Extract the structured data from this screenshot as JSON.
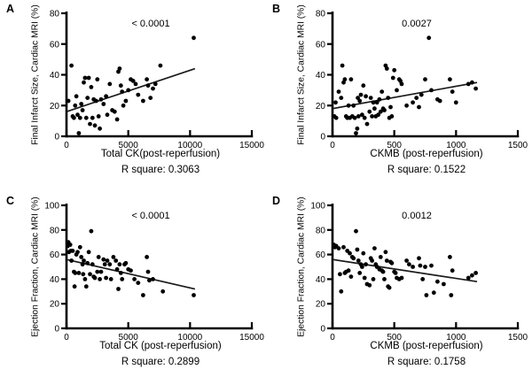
{
  "style": {
    "background": "#ffffff",
    "axis_color": "#000000",
    "point_color": "#000000",
    "line_color": "#1a1a1a",
    "text_color": "#000000"
  },
  "chart_data": [
    {
      "panel": "A",
      "type": "scatter",
      "xlabel": "Total CK(post-reperfusion)",
      "ylabel": "Final Infarct Size, Cardiac MRI (%)",
      "annotation": "< 0.0001",
      "footer": "R square: 0.3063",
      "xlim": [
        0,
        15000
      ],
      "ylim": [
        0,
        80
      ],
      "xticks": [
        0,
        5000,
        10000,
        15000
      ],
      "yticks": [
        0,
        20,
        40,
        60,
        80
      ],
      "legend": "none",
      "grid": false,
      "points": [
        [
          150,
          23
        ],
        [
          400,
          46
        ],
        [
          500,
          13
        ],
        [
          600,
          12
        ],
        [
          700,
          20
        ],
        [
          800,
          26
        ],
        [
          900,
          14
        ],
        [
          1000,
          2
        ],
        [
          1100,
          12
        ],
        [
          1200,
          21
        ],
        [
          1300,
          17
        ],
        [
          1400,
          35
        ],
        [
          1500,
          38
        ],
        [
          1600,
          12
        ],
        [
          1700,
          25
        ],
        [
          1800,
          38
        ],
        [
          1900,
          8
        ],
        [
          2000,
          32
        ],
        [
          2100,
          12
        ],
        [
          2200,
          24
        ],
        [
          2300,
          7
        ],
        [
          2400,
          23
        ],
        [
          2500,
          37
        ],
        [
          2600,
          13
        ],
        [
          2700,
          5
        ],
        [
          2800,
          24
        ],
        [
          3000,
          21
        ],
        [
          3200,
          26
        ],
        [
          3300,
          14
        ],
        [
          3500,
          34
        ],
        [
          3700,
          17
        ],
        [
          3900,
          16
        ],
        [
          4100,
          11
        ],
        [
          4200,
          42
        ],
        [
          4300,
          44
        ],
        [
          4400,
          33
        ],
        [
          4500,
          29
        ],
        [
          4600,
          20
        ],
        [
          4800,
          23
        ],
        [
          5000,
          30
        ],
        [
          5200,
          37
        ],
        [
          5400,
          36
        ],
        [
          5600,
          34
        ],
        [
          5800,
          27
        ],
        [
          6200,
          23
        ],
        [
          6500,
          37
        ],
        [
          6600,
          33
        ],
        [
          6800,
          25
        ],
        [
          7000,
          31
        ],
        [
          7200,
          34
        ],
        [
          7600,
          46
        ],
        [
          10300,
          64
        ]
      ],
      "trendline": {
        "x1": 0,
        "y1": 16,
        "x2": 10400,
        "y2": 44
      }
    },
    {
      "panel": "B",
      "type": "scatter",
      "xlabel": "CKMB (post-reperfusion)",
      "ylabel": "Final Infarct Size, Cardiac MRI (%)",
      "annotation": "0.0027",
      "footer": "R square: 0.1522",
      "xlim": [
        0,
        1500
      ],
      "ylim": [
        0,
        80
      ],
      "xticks": [
        0,
        500,
        1000,
        1500
      ],
      "yticks": [
        0,
        20,
        40,
        60,
        80
      ],
      "legend": "none",
      "grid": false,
      "points": [
        [
          15,
          13
        ],
        [
          25,
          22
        ],
        [
          30,
          12
        ],
        [
          50,
          29
        ],
        [
          70,
          25
        ],
        [
          80,
          46
        ],
        [
          90,
          35
        ],
        [
          100,
          37
        ],
        [
          110,
          13
        ],
        [
          120,
          12
        ],
        [
          130,
          20
        ],
        [
          140,
          12
        ],
        [
          150,
          37
        ],
        [
          160,
          13
        ],
        [
          170,
          20
        ],
        [
          180,
          12
        ],
        [
          190,
          2
        ],
        [
          200,
          5
        ],
        [
          205,
          25
        ],
        [
          210,
          13
        ],
        [
          220,
          23
        ],
        [
          230,
          27
        ],
        [
          240,
          14
        ],
        [
          250,
          33
        ],
        [
          260,
          12
        ],
        [
          270,
          26
        ],
        [
          280,
          8
        ],
        [
          300,
          16
        ],
        [
          310,
          25
        ],
        [
          320,
          13
        ],
        [
          330,
          22
        ],
        [
          340,
          18
        ],
        [
          350,
          13
        ],
        [
          360,
          22
        ],
        [
          370,
          14
        ],
        [
          380,
          24
        ],
        [
          390,
          16
        ],
        [
          400,
          29
        ],
        [
          410,
          18
        ],
        [
          420,
          17
        ],
        [
          430,
          46
        ],
        [
          440,
          44
        ],
        [
          450,
          25
        ],
        [
          460,
          12
        ],
        [
          470,
          19
        ],
        [
          480,
          13
        ],
        [
          490,
          38
        ],
        [
          500,
          43
        ],
        [
          520,
          30
        ],
        [
          540,
          37
        ],
        [
          550,
          36
        ],
        [
          560,
          34
        ],
        [
          600,
          20
        ],
        [
          650,
          22
        ],
        [
          680,
          25
        ],
        [
          700,
          19
        ],
        [
          720,
          27
        ],
        [
          750,
          37
        ],
        [
          780,
          64
        ],
        [
          800,
          30
        ],
        [
          850,
          24
        ],
        [
          870,
          23
        ],
        [
          950,
          37
        ],
        [
          970,
          29
        ],
        [
          1000,
          22
        ],
        [
          1100,
          34
        ],
        [
          1130,
          35
        ],
        [
          1160,
          31
        ]
      ],
      "trendline": {
        "x1": 0,
        "y1": 18,
        "x2": 1170,
        "y2": 35
      }
    },
    {
      "panel": "C",
      "type": "scatter",
      "xlabel": "Total CK (post-reperfusion)",
      "ylabel": "Ejection Fraction, Cardiac MRI (%)",
      "annotation": "< 0.0001",
      "footer": "R square: 0.2899",
      "xlim": [
        0,
        15000
      ],
      "ylim": [
        0,
        100
      ],
      "xticks": [
        0,
        5000,
        10000,
        15000
      ],
      "yticks": [
        0,
        20,
        40,
        60,
        80,
        100
      ],
      "legend": "none",
      "grid": false,
      "points": [
        [
          100,
          67
        ],
        [
          150,
          70
        ],
        [
          200,
          62
        ],
        [
          300,
          68
        ],
        [
          350,
          63
        ],
        [
          400,
          55
        ],
        [
          500,
          63
        ],
        [
          600,
          46
        ],
        [
          650,
          34
        ],
        [
          700,
          45
        ],
        [
          800,
          60
        ],
        [
          900,
          62
        ],
        [
          1000,
          45
        ],
        [
          1100,
          66
        ],
        [
          1200,
          58
        ],
        [
          1300,
          52
        ],
        [
          1350,
          44
        ],
        [
          1400,
          55
        ],
        [
          1500,
          40
        ],
        [
          1600,
          34
        ],
        [
          1700,
          53
        ],
        [
          1800,
          62
        ],
        [
          1900,
          44
        ],
        [
          2000,
          79
        ],
        [
          2100,
          52
        ],
        [
          2200,
          42
        ],
        [
          2300,
          41
        ],
        [
          2500,
          46
        ],
        [
          2600,
          58
        ],
        [
          2700,
          40
        ],
        [
          2800,
          46
        ],
        [
          3000,
          56
        ],
        [
          3100,
          52
        ],
        [
          3200,
          41
        ],
        [
          3300,
          55
        ],
        [
          3500,
          52
        ],
        [
          3600,
          40
        ],
        [
          3800,
          58
        ],
        [
          4000,
          55
        ],
        [
          4100,
          48
        ],
        [
          4200,
          32
        ],
        [
          4300,
          52
        ],
        [
          4400,
          45
        ],
        [
          4500,
          40
        ],
        [
          4700,
          52
        ],
        [
          4800,
          53
        ],
        [
          5000,
          48
        ],
        [
          5200,
          47
        ],
        [
          5500,
          40
        ],
        [
          5800,
          37
        ],
        [
          6200,
          27
        ],
        [
          6500,
          58
        ],
        [
          6600,
          46
        ],
        [
          6700,
          39
        ],
        [
          7000,
          40
        ],
        [
          7800,
          30
        ],
        [
          10300,
          27
        ]
      ],
      "trendline": {
        "x1": 0,
        "y1": 56,
        "x2": 10400,
        "y2": 32
      }
    },
    {
      "panel": "D",
      "type": "scatter",
      "xlabel": "CKMB (post-reperfusion)",
      "ylabel": "Ejection Fraction, Cardiac MRI (%)",
      "annotation": "0.0012",
      "footer": "R square: 0.1758",
      "xlim": [
        0,
        1500
      ],
      "ylim": [
        0,
        100
      ],
      "xticks": [
        0,
        500,
        1000,
        1500
      ],
      "yticks": [
        0,
        20,
        40,
        60,
        80,
        100
      ],
      "legend": "none",
      "grid": false,
      "points": [
        [
          10,
          68
        ],
        [
          20,
          66
        ],
        [
          30,
          67
        ],
        [
          50,
          65
        ],
        [
          60,
          44
        ],
        [
          70,
          30
        ],
        [
          90,
          66
        ],
        [
          100,
          45
        ],
        [
          110,
          46
        ],
        [
          120,
          63
        ],
        [
          130,
          47
        ],
        [
          140,
          61
        ],
        [
          150,
          42
        ],
        [
          160,
          58
        ],
        [
          170,
          57
        ],
        [
          190,
          79
        ],
        [
          200,
          64
        ],
        [
          210,
          55
        ],
        [
          220,
          45
        ],
        [
          230,
          52
        ],
        [
          240,
          50
        ],
        [
          250,
          61
        ],
        [
          260,
          41
        ],
        [
          270,
          52
        ],
        [
          280,
          36
        ],
        [
          300,
          35
        ],
        [
          310,
          57
        ],
        [
          320,
          55
        ],
        [
          330,
          40
        ],
        [
          340,
          65
        ],
        [
          350,
          52
        ],
        [
          360,
          50
        ],
        [
          380,
          48
        ],
        [
          390,
          58
        ],
        [
          400,
          47
        ],
        [
          410,
          46
        ],
        [
          420,
          40
        ],
        [
          430,
          62
        ],
        [
          440,
          55
        ],
        [
          450,
          34
        ],
        [
          460,
          33
        ],
        [
          470,
          54
        ],
        [
          480,
          53
        ],
        [
          500,
          46
        ],
        [
          510,
          45
        ],
        [
          520,
          41
        ],
        [
          540,
          40
        ],
        [
          560,
          41
        ],
        [
          600,
          55
        ],
        [
          620,
          52
        ],
        [
          650,
          50
        ],
        [
          700,
          57
        ],
        [
          710,
          51
        ],
        [
          730,
          40
        ],
        [
          750,
          50
        ],
        [
          760,
          27
        ],
        [
          800,
          51
        ],
        [
          820,
          29
        ],
        [
          850,
          38
        ],
        [
          900,
          36
        ],
        [
          950,
          58
        ],
        [
          960,
          27
        ],
        [
          970,
          47
        ],
        [
          1100,
          41
        ],
        [
          1130,
          43
        ],
        [
          1160,
          45
        ]
      ],
      "trendline": {
        "x1": 0,
        "y1": 56,
        "x2": 1170,
        "y2": 38
      }
    }
  ]
}
